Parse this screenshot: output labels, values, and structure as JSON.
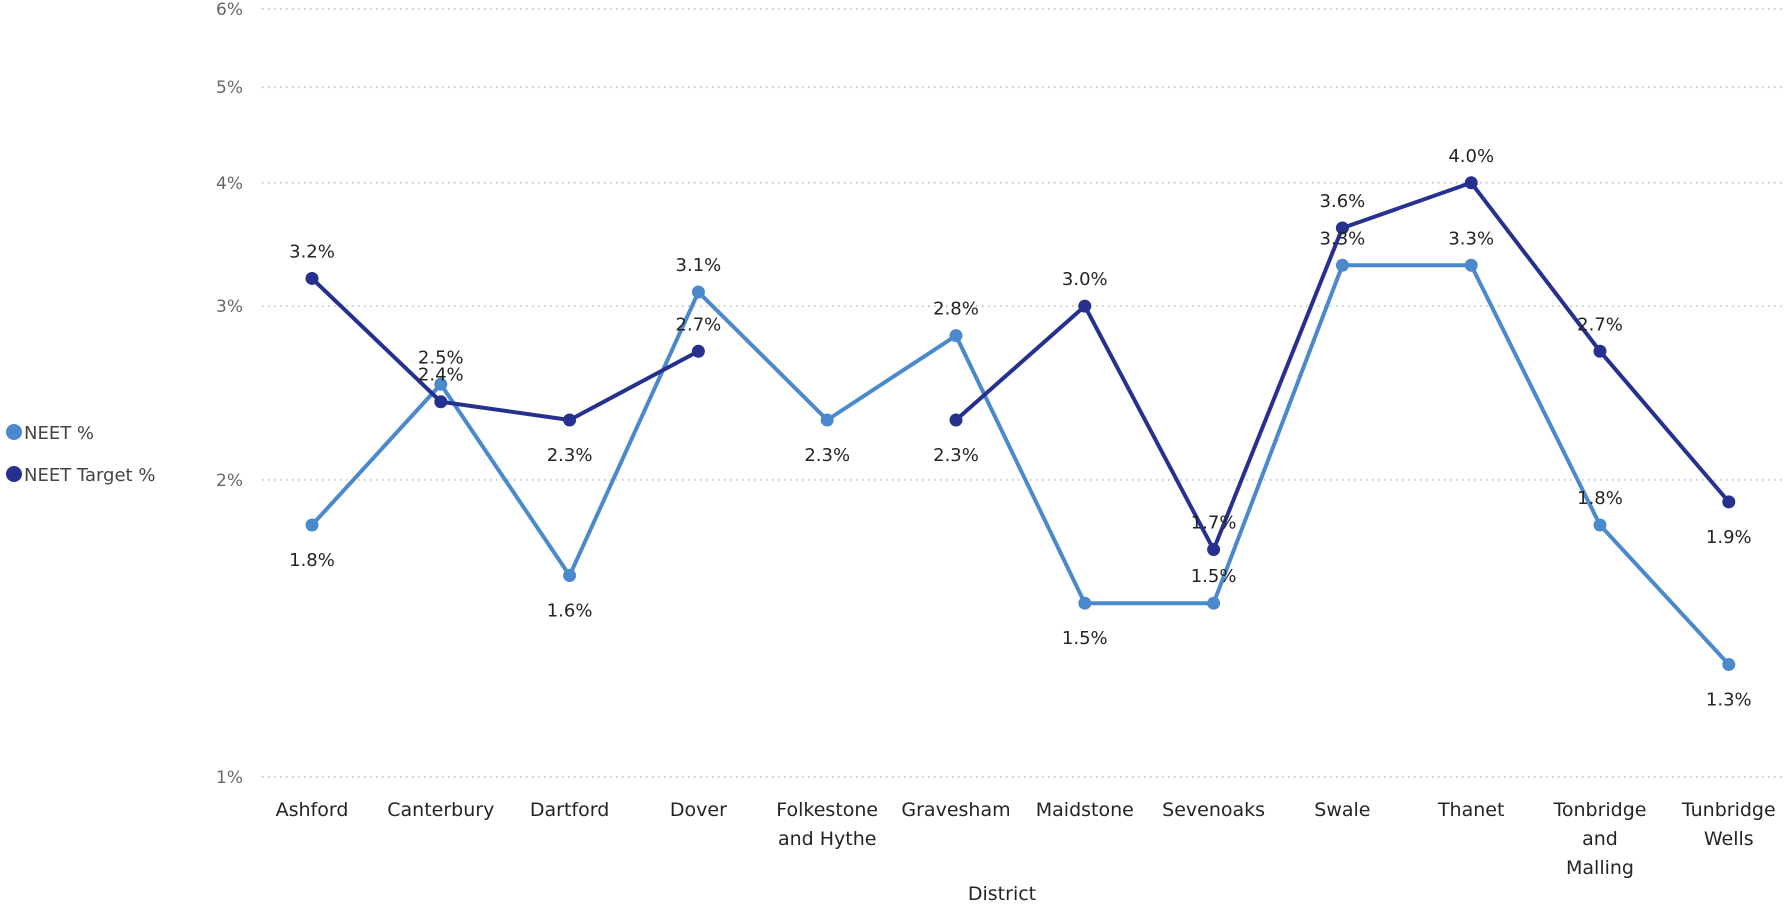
{
  "chart_data": {
    "type": "line",
    "xlabel": "District",
    "ylabel": "",
    "yscale": "log",
    "ylim": [
      1,
      6
    ],
    "yticks": [
      {
        "value": 1,
        "label": "1%"
      },
      {
        "value": 2,
        "label": "2%"
      },
      {
        "value": 3,
        "label": "3%"
      },
      {
        "value": 4,
        "label": "4%"
      },
      {
        "value": 5,
        "label": "5%"
      },
      {
        "value": 6,
        "label": "6%"
      }
    ],
    "grid": true,
    "legend": "left",
    "categories": [
      [
        "Ashford"
      ],
      [
        "Canterbury"
      ],
      [
        "Dartford"
      ],
      [
        "Dover"
      ],
      [
        "Folkestone",
        "and Hythe"
      ],
      [
        "Gravesham"
      ],
      [
        "Maidstone"
      ],
      [
        "Sevenoaks"
      ],
      [
        "Swale"
      ],
      [
        "Thanet"
      ],
      [
        "Tonbridge",
        "and",
        "Malling"
      ],
      [
        "Tunbridge",
        "Wells"
      ]
    ],
    "series": [
      {
        "name": "NEET %",
        "color": "#4a89cc",
        "values": [
          1.8,
          2.5,
          1.6,
          3.1,
          2.3,
          2.8,
          1.5,
          1.5,
          3.3,
          3.3,
          1.8,
          1.3
        ],
        "labels": [
          "1.8%",
          "2.5%",
          "1.6%",
          "3.1%",
          "2.3%",
          "2.8%",
          "1.5%",
          "1.5%",
          "3.3%",
          "3.3%",
          "1.8%",
          "1.3%"
        ],
        "label_pos": [
          "below",
          "above",
          "below",
          "above",
          "below",
          "above",
          "below",
          "above",
          "above",
          "above",
          "above",
          "below"
        ]
      },
      {
        "name": "NEET Target %",
        "color": "#26318f",
        "values": [
          3.2,
          2.4,
          2.3,
          2.7,
          null,
          2.3,
          3.0,
          1.7,
          3.6,
          4.0,
          2.7,
          1.9
        ],
        "labels": [
          "3.2%",
          "2.4%",
          "2.3%",
          "2.7%",
          null,
          "2.3%",
          "3.0%",
          "1.7%",
          "3.6%",
          "4.0%",
          "2.7%",
          "1.9%"
        ],
        "label_pos": [
          "above",
          "above",
          "below",
          "above",
          null,
          "below",
          "above",
          "above",
          "above",
          "above",
          "above",
          "below"
        ]
      }
    ]
  }
}
